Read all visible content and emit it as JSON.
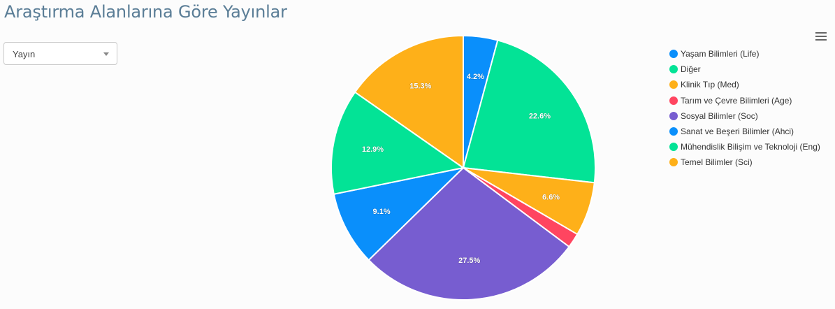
{
  "page": {
    "title": "Araştırma Alanlarına Göre Yayınlar"
  },
  "filter": {
    "selected": "Yayın"
  },
  "toolbar": {
    "menu_icon": "hamburger-menu-icon"
  },
  "chart_data": {
    "type": "pie",
    "title": "",
    "legend_position": "right",
    "slices": [
      {
        "name": "Yaşam Bilimleri (Life)",
        "value": 4.2,
        "label": "4.2%",
        "color": "#0a8ffb"
      },
      {
        "name": "Diğer",
        "value": 22.6,
        "label": "22.6%",
        "color": "#03e396"
      },
      {
        "name": "Klinik Tıp (Med)",
        "value": 6.6,
        "label": "6.6%",
        "color": "#feb019"
      },
      {
        "name": "Tarım ve Çevre Bilimleri (Age)",
        "value": 1.8,
        "label": "",
        "color": "#ff4560"
      },
      {
        "name": "Sosyal Bilimler (Soc)",
        "value": 27.5,
        "label": "27.5%",
        "color": "#775dd0"
      },
      {
        "name": "Sanat ve Beşeri Bilimler (Ahci)",
        "value": 9.1,
        "label": "9.1%",
        "color": "#0a8ffb"
      },
      {
        "name": "Mühendislik Bilişim ve Teknoloji (Eng)",
        "value": 12.9,
        "label": "12.9%",
        "color": "#03e396"
      },
      {
        "name": "Temel Bilimler (Sci)",
        "value": 15.3,
        "label": "15.3%",
        "color": "#feb019"
      }
    ]
  }
}
